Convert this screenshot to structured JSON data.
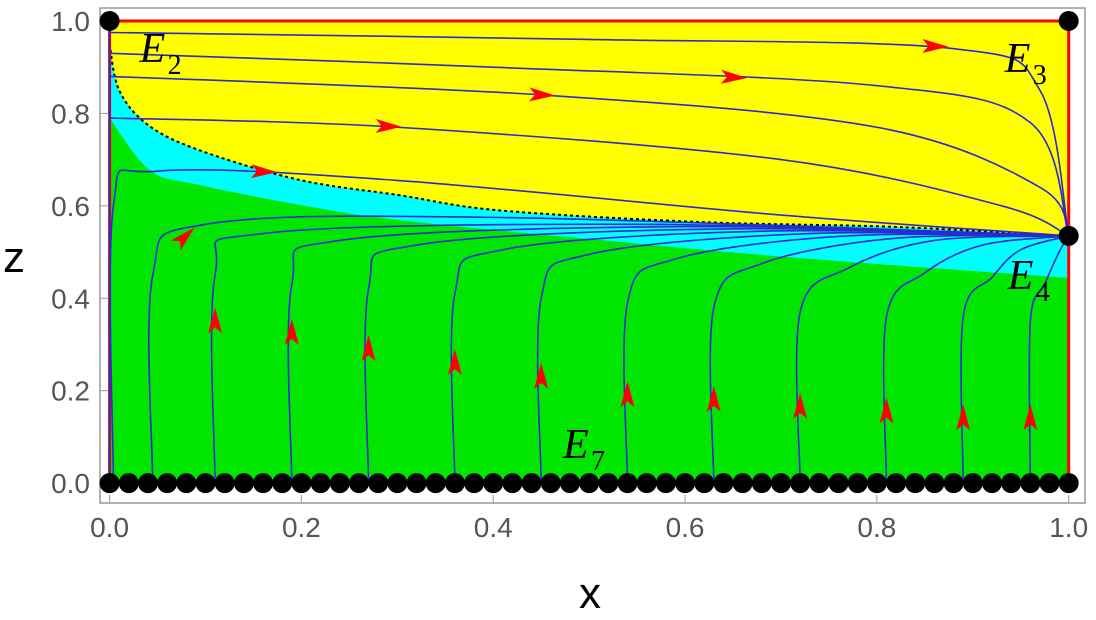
{
  "chart_data": {
    "type": "phase-portrait",
    "xlabel": "x",
    "ylabel": "z",
    "xlim": [
      -0.01,
      1.017
    ],
    "ylim": [
      -0.043,
      1.028
    ],
    "xticks": [
      {
        "value": 0,
        "label": "0.0"
      },
      {
        "value": 0.2,
        "label": "0.2"
      },
      {
        "value": 0.4,
        "label": "0.4"
      },
      {
        "value": 0.6,
        "label": "0.6"
      },
      {
        "value": 0.8,
        "label": "0.8"
      },
      {
        "value": 1,
        "label": "1.0"
      }
    ],
    "yticks": [
      {
        "value": 0,
        "label": "0.0"
      },
      {
        "value": 0.2,
        "label": "0.2"
      },
      {
        "value": 0.4,
        "label": "0.4"
      },
      {
        "value": 0.6,
        "label": "0.6"
      },
      {
        "value": 0.8,
        "label": "0.8"
      },
      {
        "value": 1,
        "label": "1.0"
      }
    ],
    "background": "#ffff00",
    "regions": [
      {
        "color": "#00ffff",
        "x": [
          0,
          0.01,
          0.04,
          0.094,
          0.198,
          0.302,
          0.407,
          0.615,
          0.824,
          1
        ],
        "z": [
          0.95,
          0.85,
          0.775,
          0.72,
          0.656,
          0.623,
          0.59,
          0.565,
          0.554,
          0.533
        ]
      },
      {
        "color": "#00e600",
        "x": [
          0,
          0.042,
          0.094,
          0.198,
          0.302,
          0.511,
          0.719,
          1
        ],
        "z": [
          0.79,
          0.677,
          0.645,
          0.602,
          0.569,
          0.526,
          0.487,
          0.444
        ]
      }
    ],
    "separatrix": {
      "color": "#000000",
      "x": [
        0,
        0.01,
        0.04,
        0.094,
        0.198,
        0.302,
        0.407,
        0.615,
        0.824,
        1
      ],
      "z": [
        0.95,
        0.85,
        0.775,
        0.72,
        0.656,
        0.623,
        0.59,
        0.565,
        0.554,
        0.533
      ]
    },
    "boundary": {
      "color": "#ff0000",
      "x": [
        0,
        0,
        1,
        1
      ],
      "z": [
        0,
        1,
        1,
        0
      ]
    },
    "trajectory_color": "#2b2bd0",
    "arrow_color": "#ff0000",
    "trajectories": [
      {
        "x": [
          0,
          0
        ],
        "z": [
          0,
          1
        ]
      },
      {
        "x": [
          0,
          0.5,
          0.88,
          0.97,
          1
        ],
        "z": [
          0.975,
          0.96,
          0.94,
          0.85,
          0.535
        ],
        "arrow": [
          0.86,
          0.945
        ]
      },
      {
        "x": [
          0,
          0.4,
          0.8,
          0.96,
          1
        ],
        "z": [
          0.93,
          0.9,
          0.86,
          0.78,
          0.535
        ],
        "arrow": [
          0.65,
          0.878
        ]
      },
      {
        "x": [
          0,
          0.45,
          0.8,
          0.97,
          1
        ],
        "z": [
          0.88,
          0.84,
          0.77,
          0.64,
          0.535
        ],
        "arrow": [
          0.45,
          0.84
        ]
      },
      {
        "x": [
          0,
          0.3,
          0.7,
          0.93,
          1
        ],
        "z": [
          0.79,
          0.77,
          0.7,
          0.6,
          0.535
        ],
        "arrow": [
          0.29,
          0.772
        ]
      },
      {
        "x": [
          0.004,
          0.004,
          0.05,
          0.3,
          0.7,
          1
        ],
        "z": [
          0,
          0.6,
          0.675,
          0.655,
          0.58,
          0.535
        ],
        "arrow": [
          0.16,
          0.674
        ]
      },
      {
        "x": [
          0.045,
          0.045,
          0.1,
          0.4,
          1
        ],
        "z": [
          0,
          0.45,
          0.56,
          0.575,
          0.535
        ],
        "arrow": [
          0.078,
          0.532
        ]
      },
      {
        "x": [
          0.11,
          0.11,
          0.16,
          0.55,
          1
        ],
        "z": [
          0,
          0.45,
          0.54,
          0.56,
          0.535
        ],
        "arrow": [
          0.11,
          0.35
        ]
      },
      {
        "x": [
          0.19,
          0.19,
          0.24,
          0.6,
          1
        ],
        "z": [
          0,
          0.43,
          0.525,
          0.555,
          0.535
        ],
        "arrow": [
          0.19,
          0.325
        ]
      },
      {
        "x": [
          0.27,
          0.27,
          0.32,
          0.64,
          1
        ],
        "z": [
          0,
          0.42,
          0.515,
          0.55,
          0.535
        ],
        "arrow": [
          0.27,
          0.29
        ]
      },
      {
        "x": [
          0.36,
          0.36,
          0.41,
          0.68,
          1
        ],
        "z": [
          0,
          0.41,
          0.505,
          0.545,
          0.535
        ],
        "arrow": [
          0.36,
          0.26
        ]
      },
      {
        "x": [
          0.45,
          0.45,
          0.5,
          0.73,
          1
        ],
        "z": [
          0,
          0.4,
          0.495,
          0.54,
          0.535
        ],
        "arrow": [
          0.45,
          0.23
        ]
      },
      {
        "x": [
          0.54,
          0.54,
          0.59,
          0.77,
          1
        ],
        "z": [
          0,
          0.39,
          0.485,
          0.535,
          0.535
        ],
        "arrow": [
          0.54,
          0.19
        ]
      },
      {
        "x": [
          0.63,
          0.63,
          0.68,
          0.82,
          1
        ],
        "z": [
          0,
          0.38,
          0.475,
          0.53,
          0.535
        ],
        "arrow": [
          0.63,
          0.18
        ]
      },
      {
        "x": [
          0.72,
          0.72,
          0.77,
          0.86,
          1
        ],
        "z": [
          0,
          0.37,
          0.465,
          0.525,
          0.535
        ],
        "arrow": [
          0.72,
          0.165
        ]
      },
      {
        "x": [
          0.81,
          0.81,
          0.85,
          0.91,
          1
        ],
        "z": [
          0,
          0.36,
          0.455,
          0.515,
          0.535
        ],
        "arrow": [
          0.81,
          0.155
        ]
      },
      {
        "x": [
          0.89,
          0.89,
          0.92,
          0.95,
          1
        ],
        "z": [
          0,
          0.36,
          0.445,
          0.505,
          0.535
        ],
        "arrow": [
          0.89,
          0.14
        ]
      },
      {
        "x": [
          0.96,
          0.96,
          0.975,
          0.99,
          1
        ],
        "z": [
          0,
          0.35,
          0.43,
          0.5,
          0.535
        ],
        "arrow": [
          0.96,
          0.14
        ]
      }
    ],
    "point_color": "#000000",
    "equilibria": [
      {
        "label": "E",
        "sub": "2",
        "x": 0,
        "z": 1
      },
      {
        "label": "E",
        "sub": "3",
        "x": 1,
        "z": 1
      },
      {
        "label": "E",
        "sub": "4",
        "x": 1,
        "z": 0.535
      }
    ],
    "line_of_equilibria": {
      "label": "E",
      "sub": "7",
      "z": 0,
      "x": [
        0,
        0.02,
        0.04,
        0.06,
        0.08,
        0.1,
        0.12,
        0.14,
        0.16,
        0.18,
        0.2,
        0.22,
        0.24,
        0.26,
        0.28,
        0.3,
        0.32,
        0.34,
        0.36,
        0.38,
        0.4,
        0.42,
        0.44,
        0.46,
        0.48,
        0.5,
        0.52,
        0.54,
        0.56,
        0.58,
        0.6,
        0.62,
        0.64,
        0.66,
        0.68,
        0.7,
        0.72,
        0.74,
        0.76,
        0.78,
        0.8,
        0.82,
        0.84,
        0.86,
        0.88,
        0.9,
        0.92,
        0.94,
        0.96,
        0.98,
        1
      ]
    }
  }
}
